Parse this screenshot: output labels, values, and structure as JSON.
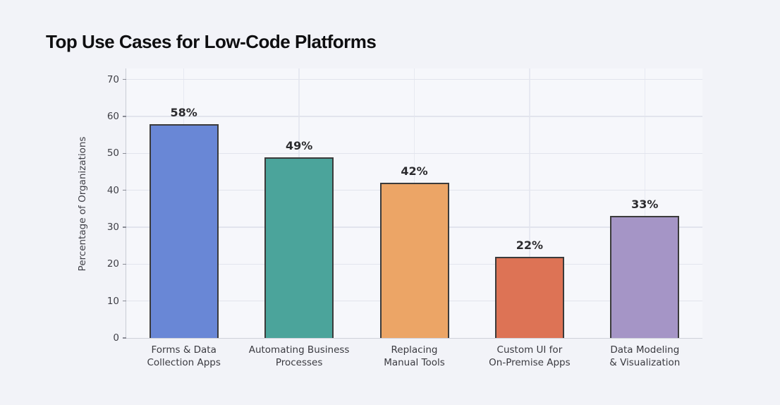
{
  "page": {
    "background_color": "#f2f3f8",
    "plot_background_color": "#f6f7fb"
  },
  "chart_data": {
    "type": "bar",
    "title": "Top Use Cases for Low-Code Platforms",
    "xlabel": "",
    "ylabel": "Percentage of Organizations",
    "categories": [
      "Forms & Data\nCollection Apps",
      "Automating Business\nProcesses",
      "Replacing\nManual Tools",
      "Custom UI for\nOn-Premise Apps",
      "Data Modeling\n& Visualization"
    ],
    "values": [
      58,
      49,
      42,
      22,
      33
    ],
    "value_labels": [
      "58%",
      "49%",
      "42%",
      "22%",
      "33%"
    ],
    "bar_colors": [
      "#6987d6",
      "#4ba49b",
      "#eca566",
      "#dd7355",
      "#a595c6"
    ],
    "bar_edge_color": "#3b3b3b",
    "ylim": [
      0,
      73
    ],
    "yticks": [
      0,
      10,
      20,
      30,
      40,
      50,
      60,
      70
    ],
    "grid": true,
    "legend": "none",
    "gridline_color": "#e2e4ed"
  }
}
